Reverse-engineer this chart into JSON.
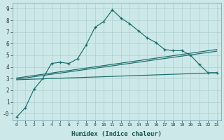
{
  "xlabel": "Humidex (Indice chaleur)",
  "bg_color": "#cce8e8",
  "line_color": "#1a6b6b",
  "grid_color": "#b0d0d0",
  "xlim": [
    -0.5,
    23.5
  ],
  "ylim": [
    -0.6,
    9.5
  ],
  "xticks": [
    0,
    1,
    2,
    3,
    4,
    5,
    6,
    7,
    8,
    9,
    10,
    11,
    12,
    13,
    14,
    15,
    16,
    17,
    18,
    19,
    20,
    21,
    22,
    23
  ],
  "yticks": [
    0,
    1,
    2,
    3,
    4,
    5,
    6,
    7,
    8,
    9
  ],
  "ytick_labels": [
    "-0",
    "1",
    "2",
    "3",
    "4",
    "5",
    "6",
    "7",
    "8",
    "9"
  ],
  "line1_x": [
    0,
    1,
    2,
    3,
    4,
    5,
    6,
    7,
    8,
    9,
    10,
    11,
    12,
    13,
    14,
    15,
    16,
    17,
    18,
    19,
    20,
    21,
    22,
    23
  ],
  "line1_y": [
    -0.3,
    0.5,
    2.1,
    3.0,
    4.3,
    4.4,
    4.3,
    4.7,
    5.9,
    7.4,
    7.9,
    8.9,
    8.2,
    7.7,
    7.1,
    6.5,
    6.1,
    5.5,
    5.4,
    5.4,
    5.0,
    4.2,
    3.5,
    3.5
  ],
  "line2_x": [
    0,
    2,
    23
  ],
  "line2_y": [
    3.0,
    3.0,
    3.5
  ],
  "line3_x": [
    0,
    2,
    23
  ],
  "line3_y": [
    2.8,
    2.8,
    5.4
  ],
  "line4_x": [
    0,
    2,
    23
  ],
  "line4_y": [
    2.5,
    2.5,
    5.2
  ]
}
